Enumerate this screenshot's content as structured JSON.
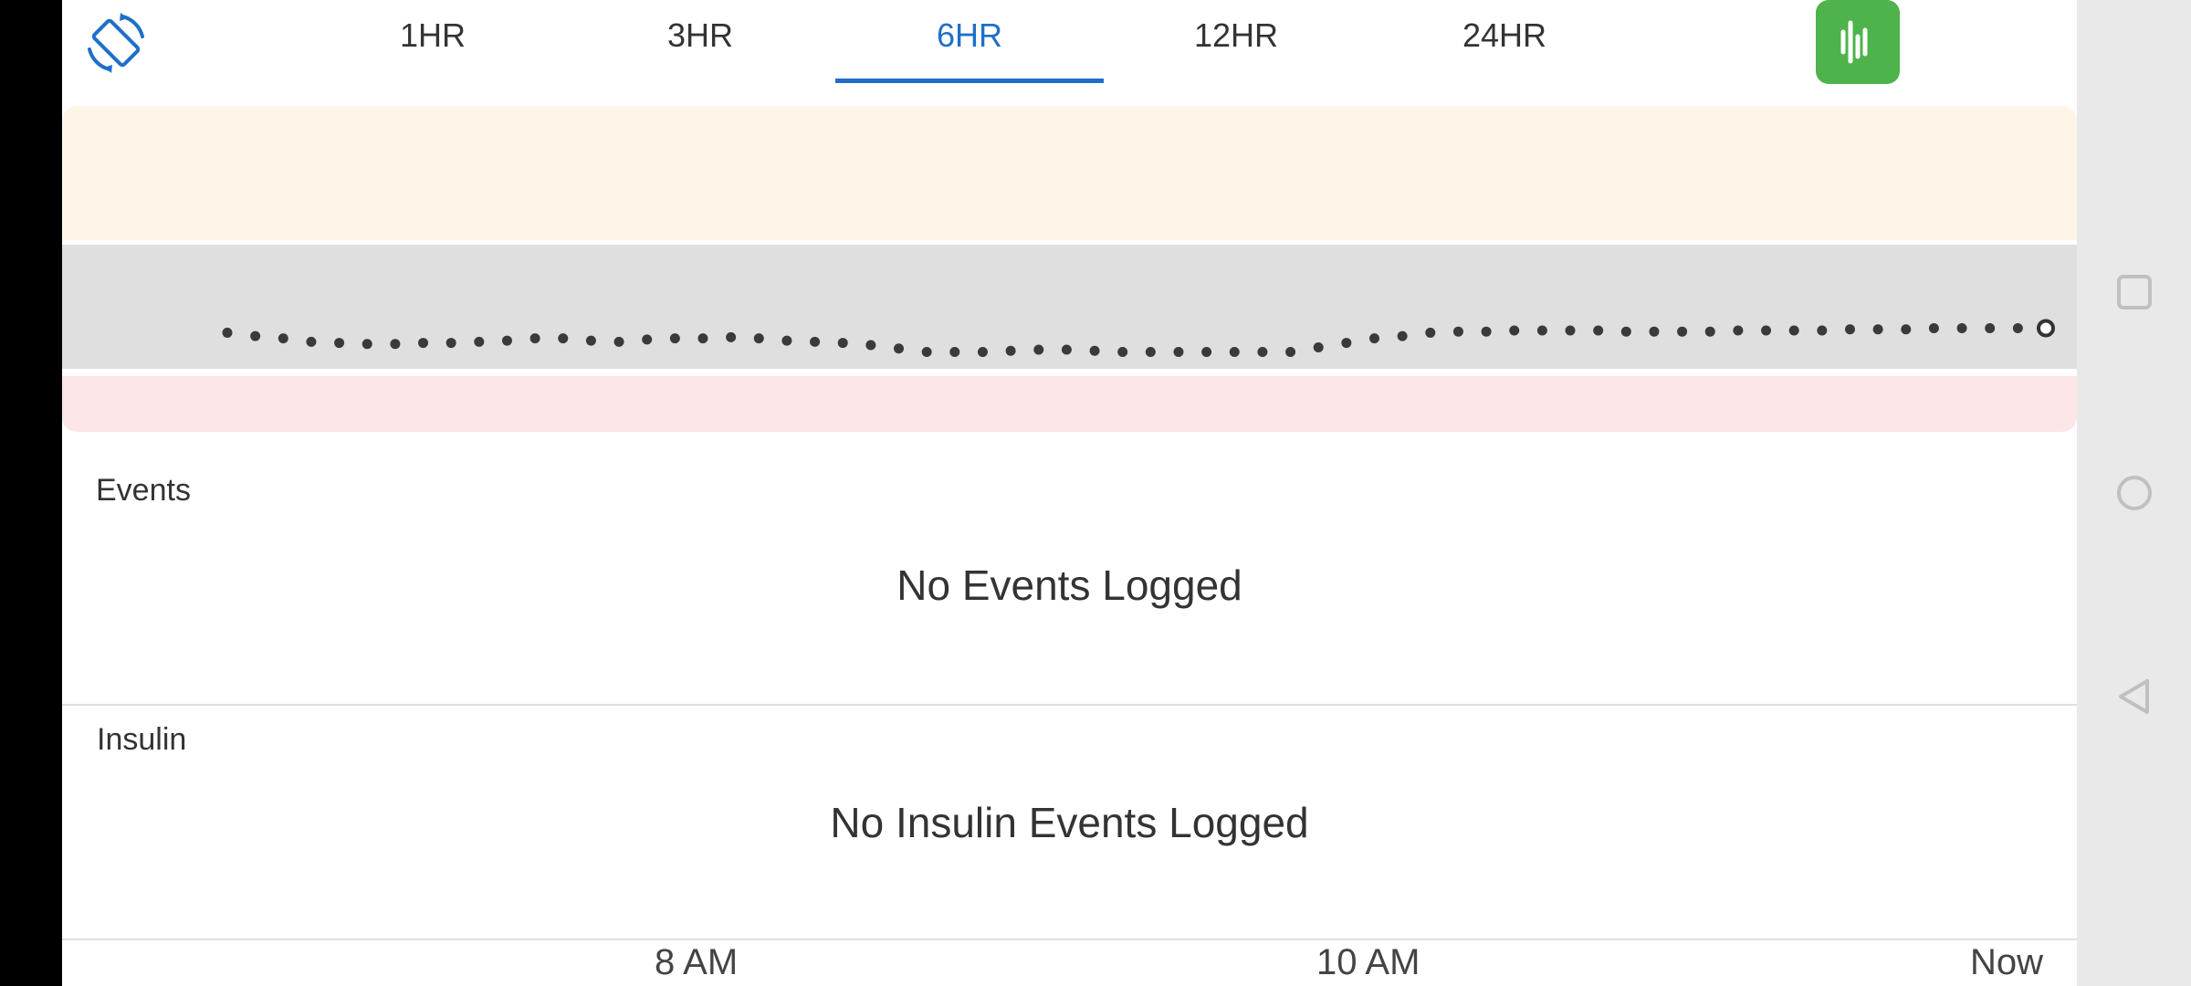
{
  "header": {
    "rotate_icon": "screen-rotate-icon",
    "tabs": [
      {
        "label": "1HR"
      },
      {
        "label": "3HR"
      },
      {
        "label": "6HR",
        "active": true
      },
      {
        "label": "12HR"
      },
      {
        "label": "24HR"
      }
    ],
    "accent_color": "#1f6fc8",
    "action_button": {
      "icon": "waveform-icon",
      "color": "#4db34a"
    }
  },
  "chart_data": {
    "type": "scatter",
    "x_tick_labels": [
      "8 AM",
      "10 AM",
      "Now"
    ],
    "bands": {
      "high": "#fdf6e8",
      "in_range": "#dfdfdf",
      "low": "#fde6e8"
    },
    "values": [
      102,
      99,
      97,
      94,
      93,
      92,
      92,
      93,
      93,
      94,
      95,
      97,
      97,
      95,
      94,
      96,
      97,
      97,
      98,
      97,
      95,
      94,
      93,
      91,
      88,
      85,
      85,
      85,
      86,
      87,
      87,
      86,
      85,
      85,
      85,
      85,
      85,
      85,
      85,
      89,
      93,
      97,
      99,
      102,
      103,
      103,
      104,
      104,
      104,
      104,
      103,
      103,
      103,
      103,
      104,
      104,
      104,
      104,
      105,
      105,
      105,
      106,
      106,
      106,
      106,
      106
    ],
    "last_point_marker": "open-circle"
  },
  "events": {
    "title": "Events",
    "empty": "No Events Logged"
  },
  "insulin": {
    "title": "Insulin",
    "empty": "No Insulin Events Logged"
  },
  "axis": {
    "labels": [
      "8 AM",
      "10 AM",
      "Now"
    ]
  },
  "system_nav": {
    "recents": "square-icon",
    "home": "circle-icon",
    "back": "triangle-back-icon"
  }
}
